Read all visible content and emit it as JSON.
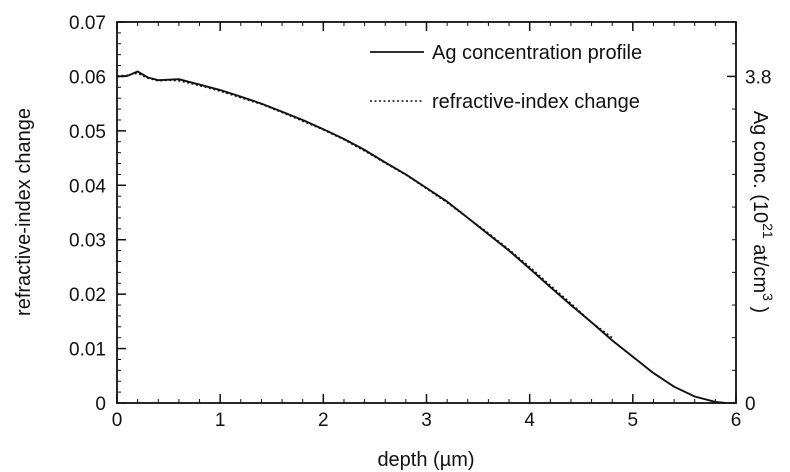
{
  "chart_data": {
    "type": "line",
    "xlabel": "depth (µm)",
    "ylabel": "refractive-index change",
    "xlim": [
      0,
      6
    ],
    "ylim": [
      0,
      0.07
    ],
    "x_ticks": [
      "0",
      "1",
      "2",
      "3",
      "4",
      "5",
      "6"
    ],
    "y_ticks": [
      "0",
      "0.01",
      "0.02",
      "0.03",
      "0.04",
      "0.05",
      "0.06",
      "0.07"
    ],
    "right_axis": {
      "label_parts": [
        "Ag conc. (10",
        "21",
        " at/cm",
        "3",
        " )"
      ],
      "ticks": [
        {
          "label": "0",
          "at_left_value": 0
        },
        {
          "label": "3.8",
          "at_left_value": 0.06
        }
      ]
    },
    "legend": {
      "placement": "top-right",
      "entries": [
        "Ag concentration profile",
        "refractive-index change"
      ]
    },
    "series": [
      {
        "name": "Ag concentration profile",
        "style": "solid",
        "x": [
          0,
          0.1,
          0.2,
          0.3,
          0.4,
          0.5,
          0.6,
          0.7,
          0.8,
          1.0,
          1.2,
          1.4,
          1.6,
          1.8,
          2.0,
          2.2,
          2.4,
          2.6,
          2.8,
          3.0,
          3.2,
          3.4,
          3.6,
          3.8,
          4.0,
          4.2,
          4.4,
          4.6,
          4.8,
          5.0,
          5.2,
          5.4,
          5.6,
          5.8,
          5.9
        ],
        "y": [
          0.06,
          0.0601,
          0.0609,
          0.0598,
          0.0593,
          0.0594,
          0.0595,
          0.059,
          0.0585,
          0.0575,
          0.0563,
          0.055,
          0.0535,
          0.052,
          0.0503,
          0.0485,
          0.0465,
          0.0442,
          0.042,
          0.0395,
          0.037,
          0.034,
          0.031,
          0.028,
          0.0247,
          0.0213,
          0.018,
          0.0148,
          0.0115,
          0.0085,
          0.0055,
          0.003,
          0.0012,
          0.0002,
          0.0
        ]
      },
      {
        "name": "refractive-index change",
        "style": "dotted",
        "x": [
          0,
          0.1,
          0.2,
          0.3,
          0.4,
          0.5,
          0.6,
          0.7,
          0.8,
          1.0,
          1.2,
          1.4,
          1.6,
          1.8,
          2.0,
          2.2,
          2.4,
          2.6,
          2.8,
          3.0,
          3.2,
          3.4,
          3.6,
          3.8,
          4.0,
          4.2,
          4.4,
          4.6,
          4.8
        ],
        "y": [
          0.0601,
          0.0602,
          0.0606,
          0.0597,
          0.0592,
          0.0593,
          0.0592,
          0.0588,
          0.0583,
          0.0573,
          0.0561,
          0.0549,
          0.0534,
          0.0518,
          0.0502,
          0.0484,
          0.0463,
          0.0441,
          0.0419,
          0.0394,
          0.0368,
          0.034,
          0.0312,
          0.0282,
          0.025,
          0.0216,
          0.0183,
          0.0148,
          0.012
        ]
      }
    ]
  }
}
